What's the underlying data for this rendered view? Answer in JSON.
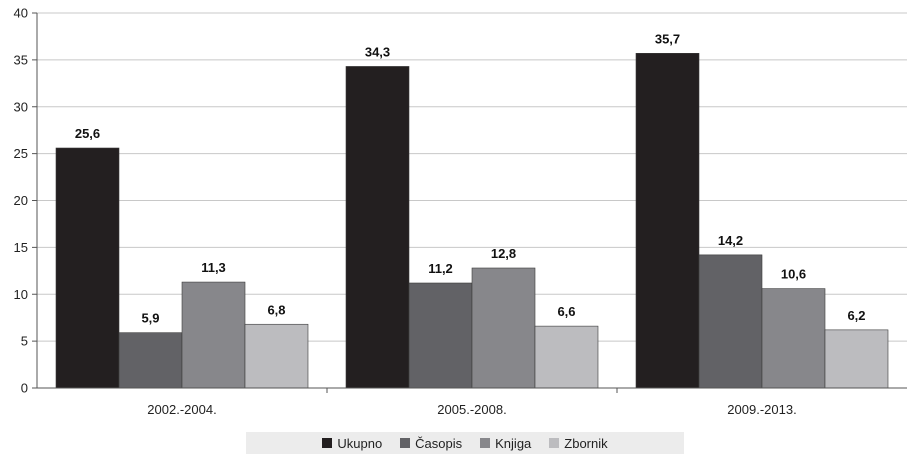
{
  "chart_data": {
    "type": "bar",
    "categories": [
      "2002.-2004.",
      "2005.-2008.",
      "2009.-2013."
    ],
    "series": [
      {
        "name": "Ukupno",
        "values": [
          25.6,
          34.3,
          35.7
        ],
        "labels": [
          "25,6",
          "34,3",
          "35,7"
        ],
        "color": "#231f20"
      },
      {
        "name": "Časopis",
        "values": [
          5.9,
          11.2,
          14.2
        ],
        "labels": [
          "5,9",
          "11,2",
          "14,2"
        ],
        "color": "#626266"
      },
      {
        "name": "Knjiga",
        "values": [
          11.3,
          12.8,
          10.6
        ],
        "labels": [
          "11,3",
          "12,8",
          "10,6"
        ],
        "color": "#87878b"
      },
      {
        "name": "Zbornik",
        "values": [
          6.8,
          6.6,
          6.2
        ],
        "labels": [
          "6,8",
          "6,6",
          "6,2"
        ],
        "color": "#bcbcbf"
      }
    ],
    "yticks": [
      "0",
      "5",
      "10",
      "15",
      "20",
      "25",
      "30",
      "35",
      "40"
    ],
    "ylim": [
      0,
      40
    ],
    "grid": true,
    "legend_position": "bottom"
  }
}
